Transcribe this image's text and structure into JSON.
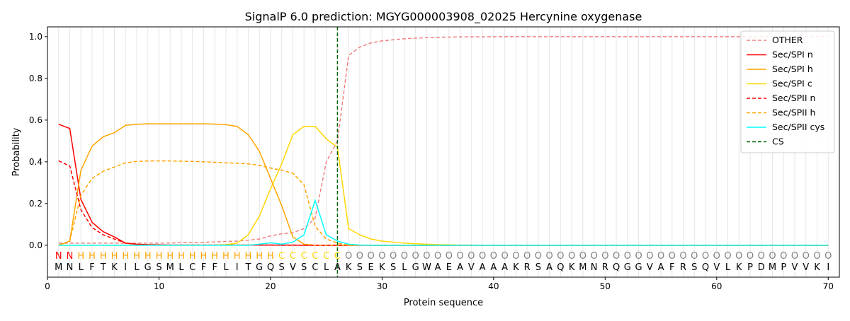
{
  "chart_data": {
    "type": "line",
    "title": "SignalP 6.0 prediction: MGYG000003908_02025 Hercynine oxygenase",
    "xlabel": "Protein sequence",
    "ylabel": "Probability",
    "xlim": [
      0,
      71
    ],
    "ylim": [
      -0.153,
      1.047
    ],
    "xticks": [
      0,
      10,
      20,
      30,
      40,
      50,
      60,
      70
    ],
    "yticks": [
      0.0,
      0.2,
      0.4,
      0.6,
      0.8,
      1.0
    ],
    "legend_position": "top-right",
    "sequence": "MNLFTKILGSMLCFFLITGQSVSCLAKSEKSLGWAEAVAAAKRSAQKMNRQGGVAFRSQVLKPDMPVVKI",
    "region_labels": "NNHHHHHHHHHHHHHHHHHHCCCCCCOOOOOOOOOOOOOOOOOOOOOOOOOOOOOOOOOOOOOOOOOOOO",
    "label_colors": {
      "N": "#ff0000",
      "H": "#ffa500",
      "C": "#ffd700",
      "O": "#808080"
    },
    "cs_position": 26,
    "series": [
      {
        "name": "OTHER",
        "color": "#f08080",
        "dash": true,
        "values": [
          0.01,
          0.01,
          0.01,
          0.01,
          0.01,
          0.01,
          0.01,
          0.01,
          0.01,
          0.01,
          0.011,
          0.012,
          0.013,
          0.014,
          0.016,
          0.018,
          0.02,
          0.024,
          0.03,
          0.045,
          0.055,
          0.06,
          0.08,
          0.13,
          0.4,
          0.5,
          0.91,
          0.95,
          0.97,
          0.98,
          0.985,
          0.99,
          0.993,
          0.995,
          0.997,
          0.998,
          0.999,
          0.999,
          0.999,
          1,
          1,
          1,
          1,
          1,
          1,
          1,
          1,
          1,
          1,
          1,
          1,
          1,
          1,
          1,
          1,
          1,
          1,
          1,
          1,
          1,
          1,
          1,
          1,
          1,
          1,
          1,
          1,
          1,
          1,
          1
        ]
      },
      {
        "name": "Sec/SPI n",
        "color": "#ff0000",
        "dash": false,
        "values": [
          0.58,
          0.56,
          0.22,
          0.11,
          0.065,
          0.04,
          0.01,
          0.005,
          0.003,
          0.002,
          0.001,
          0.001,
          0.001,
          0.001,
          0.001,
          0.001,
          0.001,
          0.001,
          0.001,
          0.001,
          0.001,
          0.001,
          0,
          0,
          0,
          0,
          0,
          0,
          0,
          0,
          0,
          0,
          0,
          0,
          0,
          0,
          0,
          0,
          0,
          0,
          0,
          0,
          0,
          0,
          0,
          0,
          0,
          0,
          0,
          0,
          0,
          0,
          0,
          0,
          0,
          0,
          0,
          0,
          0,
          0,
          0,
          0,
          0,
          0,
          0,
          0,
          0,
          0,
          0,
          0
        ]
      },
      {
        "name": "Sec/SPI h",
        "color": "#ffa500",
        "dash": false,
        "values": [
          0,
          0.02,
          0.36,
          0.475,
          0.52,
          0.54,
          0.575,
          0.58,
          0.582,
          0.582,
          0.582,
          0.582,
          0.582,
          0.582,
          0.581,
          0.578,
          0.57,
          0.53,
          0.45,
          0.32,
          0.19,
          0.04,
          0.005,
          0,
          0,
          0,
          0,
          0,
          0,
          0,
          0,
          0,
          0,
          0,
          0,
          0,
          0,
          0,
          0,
          0,
          0,
          0,
          0,
          0,
          0,
          0,
          0,
          0,
          0,
          0,
          0,
          0,
          0,
          0,
          0,
          0,
          0,
          0,
          0,
          0,
          0,
          0,
          0,
          0,
          0,
          0,
          0,
          0,
          0,
          0
        ]
      },
      {
        "name": "Sec/SPI c",
        "color": "#ffd700",
        "dash": false,
        "values": [
          0,
          0,
          0,
          0,
          0,
          0,
          0,
          0,
          0,
          0,
          0,
          0,
          0,
          0,
          0.001,
          0.003,
          0.01,
          0.05,
          0.14,
          0.27,
          0.39,
          0.53,
          0.57,
          0.57,
          0.51,
          0.47,
          0.08,
          0.05,
          0.03,
          0.02,
          0.015,
          0.01,
          0.007,
          0.005,
          0.003,
          0.002,
          0.001,
          0.001,
          0,
          0,
          0,
          0,
          0,
          0,
          0,
          0,
          0,
          0,
          0,
          0,
          0,
          0,
          0,
          0,
          0,
          0,
          0,
          0,
          0,
          0,
          0,
          0,
          0,
          0,
          0,
          0,
          0,
          0,
          0,
          0
        ]
      },
      {
        "name": "Sec/SPII n",
        "color": "#ff0000",
        "dash": true,
        "values": [
          0.405,
          0.38,
          0.17,
          0.085,
          0.05,
          0.03,
          0.01,
          0.004,
          0.002,
          0.001,
          0.001,
          0.001,
          0.001,
          0.001,
          0.001,
          0.001,
          0.001,
          0.001,
          0.001,
          0.001,
          0,
          0,
          0,
          0,
          0,
          0,
          0,
          0,
          0,
          0,
          0,
          0,
          0,
          0,
          0,
          0,
          0,
          0,
          0,
          0,
          0,
          0,
          0,
          0,
          0,
          0,
          0,
          0,
          0,
          0,
          0,
          0,
          0,
          0,
          0,
          0,
          0,
          0,
          0,
          0,
          0,
          0,
          0,
          0,
          0,
          0,
          0,
          0,
          0,
          0
        ]
      },
      {
        "name": "Sec/SPII h",
        "color": "#ffa500",
        "dash": true,
        "values": [
          0,
          0.02,
          0.24,
          0.32,
          0.355,
          0.375,
          0.395,
          0.402,
          0.404,
          0.404,
          0.404,
          0.403,
          0.402,
          0.4,
          0.398,
          0.395,
          0.393,
          0.39,
          0.383,
          0.37,
          0.36,
          0.345,
          0.29,
          0.09,
          0.03,
          0.01,
          0,
          0,
          0,
          0,
          0,
          0,
          0,
          0,
          0,
          0,
          0,
          0,
          0,
          0,
          0,
          0,
          0,
          0,
          0,
          0,
          0,
          0,
          0,
          0,
          0,
          0,
          0,
          0,
          0,
          0,
          0,
          0,
          0,
          0,
          0,
          0,
          0,
          0,
          0,
          0,
          0,
          0,
          0,
          0
        ]
      },
      {
        "name": "Sec/SPII cys",
        "color": "#00ffff",
        "dash": false,
        "values": [
          0,
          0,
          0,
          0,
          0,
          0,
          0,
          0,
          0,
          0,
          0,
          0,
          0,
          0,
          0,
          0,
          0,
          0,
          0.005,
          0.012,
          0.005,
          0.015,
          0.05,
          0.215,
          0.05,
          0.02,
          0.005,
          0.001,
          0,
          0,
          0,
          0,
          0,
          0,
          0,
          0,
          0,
          0,
          0,
          0,
          0,
          0,
          0,
          0,
          0,
          0,
          0,
          0,
          0,
          0,
          0,
          0,
          0,
          0,
          0,
          0,
          0,
          0,
          0,
          0,
          0,
          0,
          0,
          0,
          0,
          0,
          0,
          0,
          0,
          0
        ]
      }
    ],
    "cs_label": "CS",
    "cs_color": "#006400"
  }
}
